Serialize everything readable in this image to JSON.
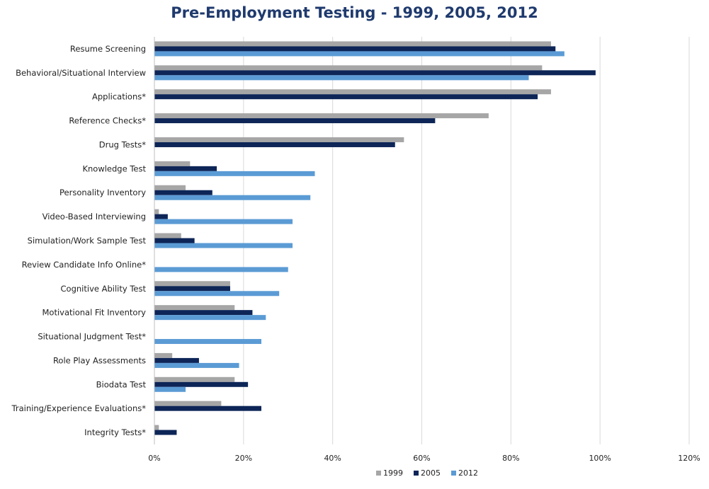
{
  "chart_data": {
    "type": "bar",
    "orientation": "horizontal",
    "title": "Pre-Employment Testing - 1999, 2005, 2012",
    "xlabel": "",
    "ylabel": "",
    "xlim": [
      0,
      120
    ],
    "x_ticks": [
      "0%",
      "20%",
      "40%",
      "60%",
      "80%",
      "100%",
      "120%"
    ],
    "grid": "vertical",
    "legend_position": "bottom",
    "categories": [
      "Resume Screening",
      "Behavioral/Situational Interview",
      "Applications*",
      "Reference Checks*",
      "Drug Tests*",
      "Knowledge Test",
      "Personality Inventory",
      "Video-Based Interviewing",
      "Simulation/Work Sample Test",
      "Review Candidate Info Online*",
      "Cognitive Ability Test",
      "Motivational Fit Inventory",
      "Situational Judgment Test*",
      "Role Play Assessments",
      "Biodata Test",
      "Training/Experience Evaluations*",
      "Integrity Tests*"
    ],
    "series": [
      {
        "name": "1999",
        "color": "#a6a6a6",
        "values": [
          89,
          87,
          89,
          75,
          56,
          8,
          7,
          1,
          6,
          0,
          17,
          18,
          0,
          4,
          18,
          15,
          1
        ]
      },
      {
        "name": "2005",
        "color": "#0d2557",
        "values": [
          90,
          99,
          86,
          63,
          54,
          14,
          13,
          3,
          9,
          0,
          17,
          22,
          0,
          10,
          21,
          24,
          5
        ]
      },
      {
        "name": "2012",
        "color": "#5b9bd5",
        "values": [
          92,
          84,
          0,
          0,
          0,
          36,
          35,
          31,
          31,
          30,
          28,
          25,
          24,
          19,
          7,
          0,
          0
        ]
      }
    ]
  }
}
